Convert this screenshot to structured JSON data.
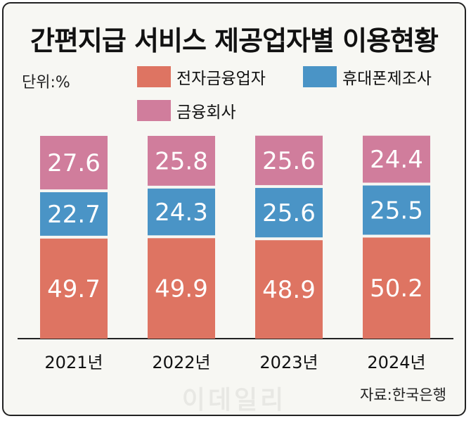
{
  "chart_data": {
    "type": "bar",
    "stacked": true,
    "title": "간편지급 서비스 제공업자별 이용현황",
    "unit_label": "단위:%",
    "categories": [
      "2021년",
      "2022년",
      "2023년",
      "2024년"
    ],
    "series": [
      {
        "name": "전자금융업자",
        "color": "#de7462",
        "values": [
          49.7,
          49.9,
          48.9,
          50.2
        ]
      },
      {
        "name": "휴대폰제조사",
        "color": "#4a94c6",
        "values": [
          22.7,
          24.3,
          25.6,
          25.5
        ]
      },
      {
        "name": "금융회사",
        "color": "#d07d9c",
        "values": [
          27.6,
          25.8,
          25.6,
          24.4
        ]
      }
    ],
    "ylim": [
      0,
      100
    ],
    "legend_position": "top-right",
    "source": "자료:한국은행",
    "watermark": "이데일리"
  }
}
